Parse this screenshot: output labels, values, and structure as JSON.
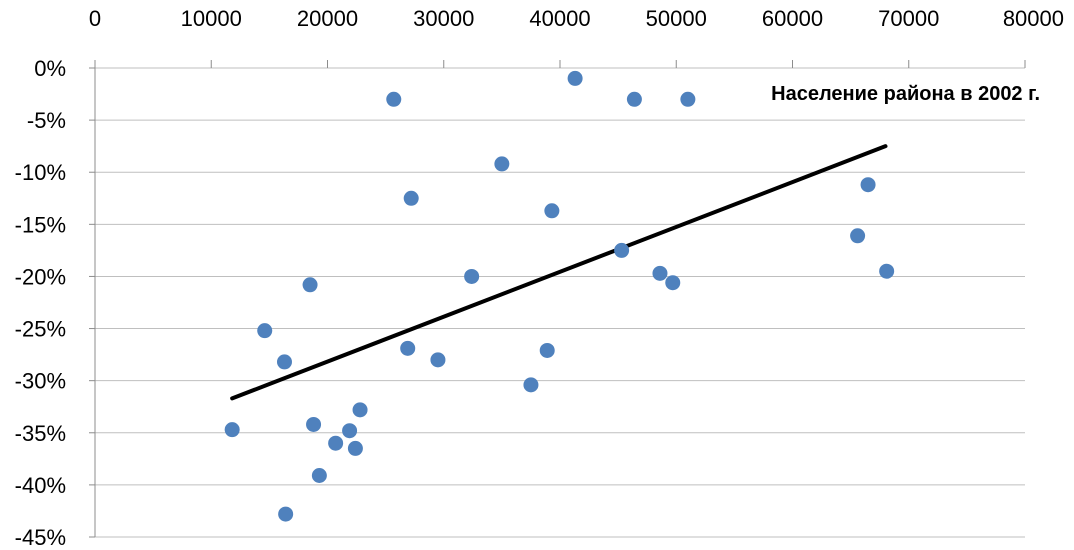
{
  "chart_data": {
    "type": "scatter",
    "title": "",
    "xlabel": "",
    "ylabel": "",
    "x_axis_position": "top",
    "xlim": [
      0,
      80000
    ],
    "ylim": [
      -45,
      0
    ],
    "x_ticks": [
      0,
      10000,
      20000,
      30000,
      40000,
      50000,
      60000,
      70000,
      80000
    ],
    "x_tick_labels": [
      "0",
      "10000",
      "20000",
      "30000",
      "40000",
      "50000",
      "60000",
      "70000",
      "80000"
    ],
    "y_ticks": [
      0,
      -5,
      -10,
      -15,
      -20,
      -25,
      -30,
      -35,
      -40,
      -45
    ],
    "y_tick_labels": [
      "0%",
      "-5%",
      "-10%",
      "-15%",
      "-20%",
      "-25%",
      "-30%",
      "-35%",
      "-40%",
      "-45%"
    ],
    "grid": {
      "horizontal": true,
      "vertical": false
    },
    "annotation": "Население района в 2002 г.",
    "series": [
      {
        "color": "#4F81BD",
        "points": [
          {
            "x": 11800,
            "y": -34.7
          },
          {
            "x": 14600,
            "y": -25.2
          },
          {
            "x": 16300,
            "y": -28.2
          },
          {
            "x": 16400,
            "y": -42.8
          },
          {
            "x": 18500,
            "y": -20.8
          },
          {
            "x": 18800,
            "y": -34.2
          },
          {
            "x": 19300,
            "y": -39.1
          },
          {
            "x": 20700,
            "y": -36.0
          },
          {
            "x": 21900,
            "y": -34.8
          },
          {
            "x": 22400,
            "y": -36.5
          },
          {
            "x": 22800,
            "y": -32.8
          },
          {
            "x": 25700,
            "y": -3.0
          },
          {
            "x": 26900,
            "y": -26.9
          },
          {
            "x": 27200,
            "y": -12.5
          },
          {
            "x": 29500,
            "y": -28.0
          },
          {
            "x": 32400,
            "y": -20.0
          },
          {
            "x": 35000,
            "y": -9.2
          },
          {
            "x": 37500,
            "y": -30.4
          },
          {
            "x": 38900,
            "y": -27.1
          },
          {
            "x": 39300,
            "y": -13.7
          },
          {
            "x": 41300,
            "y": -1.0
          },
          {
            "x": 45300,
            "y": -17.5
          },
          {
            "x": 46400,
            "y": -3.0
          },
          {
            "x": 48600,
            "y": -19.7
          },
          {
            "x": 49700,
            "y": -20.6
          },
          {
            "x": 51000,
            "y": -3.0
          },
          {
            "x": 65600,
            "y": -16.1
          },
          {
            "x": 66500,
            "y": -11.2
          },
          {
            "x": 68100,
            "y": -19.5
          }
        ]
      }
    ],
    "trendline": {
      "type": "linear",
      "color": "#000000",
      "points": [
        {
          "x": 11800,
          "y": -31.7
        },
        {
          "x": 68000,
          "y": -7.5
        }
      ]
    }
  }
}
